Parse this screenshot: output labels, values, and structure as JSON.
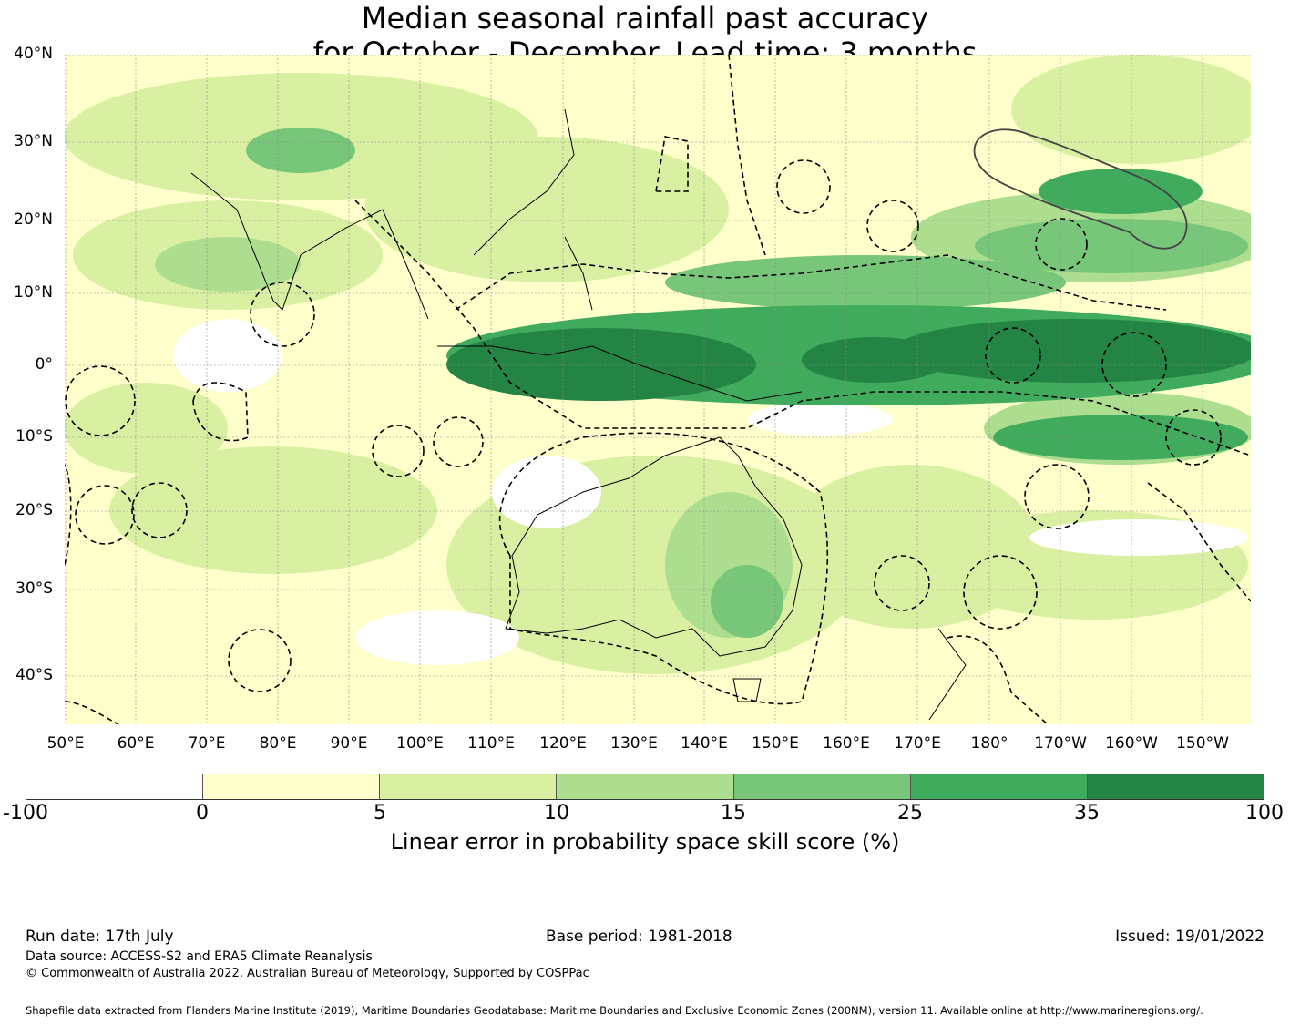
{
  "title": {
    "line1": "Median seasonal rainfall past accuracy",
    "line2": "for October - December. Lead time: 3 months"
  },
  "map": {
    "lat_labels": [
      "40°N",
      "30°N",
      "20°N",
      "10°N",
      "0°",
      "10°S",
      "20°S",
      "30°S",
      "40°S"
    ],
    "lon_labels": [
      "50°E",
      "60°E",
      "70°E",
      "80°E",
      "90°E",
      "100°E",
      "110°E",
      "120°E",
      "130°E",
      "140°E",
      "150°E",
      "160°E",
      "170°E",
      "180°",
      "170°W",
      "160°W",
      "150°W"
    ],
    "lat_range": [
      -46,
      40
    ],
    "lon_range": [
      50,
      218
    ]
  },
  "legend": {
    "ticks": [
      "-100",
      "0",
      "5",
      "10",
      "15",
      "25",
      "35",
      "100"
    ],
    "colors": [
      "#ffffff",
      "#ffffcc",
      "#d9f0a3",
      "#addd8e",
      "#78c679",
      "#41ab5d",
      "#238443"
    ],
    "label": "Linear error in probability space skill score (%)"
  },
  "footer": {
    "run_date": "Run date: 17th July",
    "base_period": "Base period: 1981-2018",
    "issued": "Issued: 19/01/2022",
    "data_source": "Data source: ACCESS-S2 and ERA5 Climate Reanalysis",
    "copyright": "© Commonwealth of Australia 2022, Australian Bureau of Meteorology, Supported by COSPPac",
    "shapefile": "Shapefile data extracted from Flanders Marine Institute (2019), Maritime Boundaries Geodatabase: Maritime Boundaries and Exclusive Economic Zones (200NM), version 11. Available online at http://www.marineregions.org/."
  }
}
